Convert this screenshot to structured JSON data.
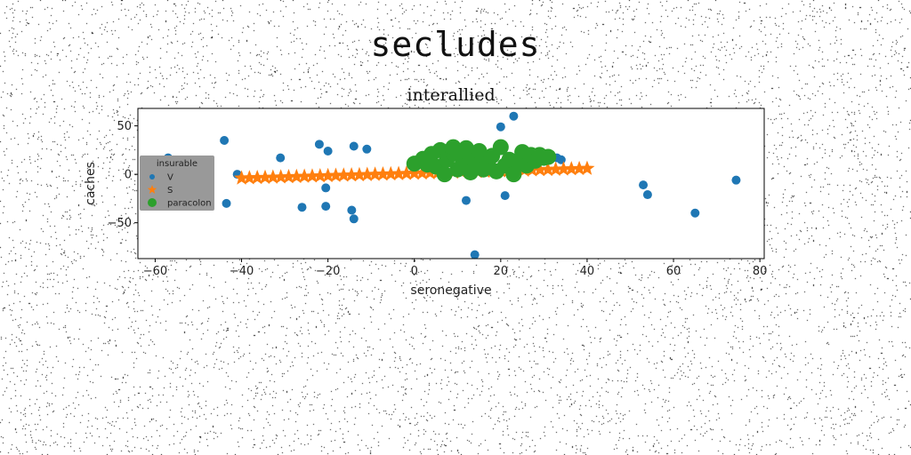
{
  "figure": {
    "suptitle": "secludes"
  },
  "chart_data": {
    "type": "scatter",
    "title": "interallied",
    "xlabel": "seronegative",
    "ylabel": "caches",
    "xlim": [
      -64,
      81
    ],
    "ylim": [
      -87,
      68
    ],
    "xticks": [
      -60,
      -40,
      -20,
      0,
      20,
      40,
      60,
      80
    ],
    "yticks": [
      -50,
      0,
      50
    ],
    "xtick_labels": [
      "−60",
      "−40",
      "−20",
      "0",
      "20",
      "40",
      "60",
      "80"
    ],
    "ytick_labels": [
      "−50",
      "0",
      "50"
    ],
    "grid": false,
    "legend": {
      "title": "insurable",
      "position": "left"
    },
    "series": [
      {
        "name": "V",
        "marker": "circle",
        "color": "#1f77b4",
        "points": [
          [
            -57,
            17
          ],
          [
            -44,
            35
          ],
          [
            -43.5,
            -30
          ],
          [
            -41,
            0
          ],
          [
            -31,
            17
          ],
          [
            -26,
            -34
          ],
          [
            -22,
            31
          ],
          [
            -20,
            24
          ],
          [
            -20.5,
            -14
          ],
          [
            -20.5,
            -33
          ],
          [
            -14.5,
            -37
          ],
          [
            -14,
            29
          ],
          [
            -14,
            -46
          ],
          [
            -11,
            26
          ],
          [
            12,
            -27
          ],
          [
            14,
            -83
          ],
          [
            20,
            49
          ],
          [
            21,
            -22
          ],
          [
            23,
            60
          ],
          [
            33,
            17
          ],
          [
            34,
            15
          ],
          [
            53,
            -11
          ],
          [
            54,
            -21
          ],
          [
            65,
            -40
          ],
          [
            74.5,
            -6
          ]
        ]
      },
      {
        "name": "S",
        "marker": "star",
        "color": "#ff7f0e",
        "x_range": [
          -40,
          40
        ],
        "count": 45,
        "y_start": -4,
        "y_end": 6
      },
      {
        "name": "paracolon",
        "marker": "circle-large",
        "color": "#2ca02c",
        "points": [
          [
            0,
            11
          ],
          [
            2,
            16
          ],
          [
            3,
            10
          ],
          [
            4,
            21
          ],
          [
            5,
            8
          ],
          [
            6,
            25
          ],
          [
            7,
            0
          ],
          [
            7.5,
            15
          ],
          [
            9,
            22
          ],
          [
            9,
            28
          ],
          [
            10,
            5
          ],
          [
            11,
            17
          ],
          [
            12,
            9
          ],
          [
            12,
            27
          ],
          [
            13,
            2
          ],
          [
            14,
            14
          ],
          [
            15,
            24
          ],
          [
            16,
            5
          ],
          [
            17,
            11
          ],
          [
            18,
            19
          ],
          [
            19,
            3
          ],
          [
            20,
            28
          ],
          [
            21,
            9
          ],
          [
            22,
            15
          ],
          [
            23,
            0
          ],
          [
            24,
            12
          ],
          [
            25,
            23
          ],
          [
            26,
            9
          ],
          [
            27,
            20
          ],
          [
            28,
            14
          ],
          [
            29,
            20
          ],
          [
            30,
            17
          ],
          [
            31,
            18
          ]
        ]
      }
    ]
  }
}
